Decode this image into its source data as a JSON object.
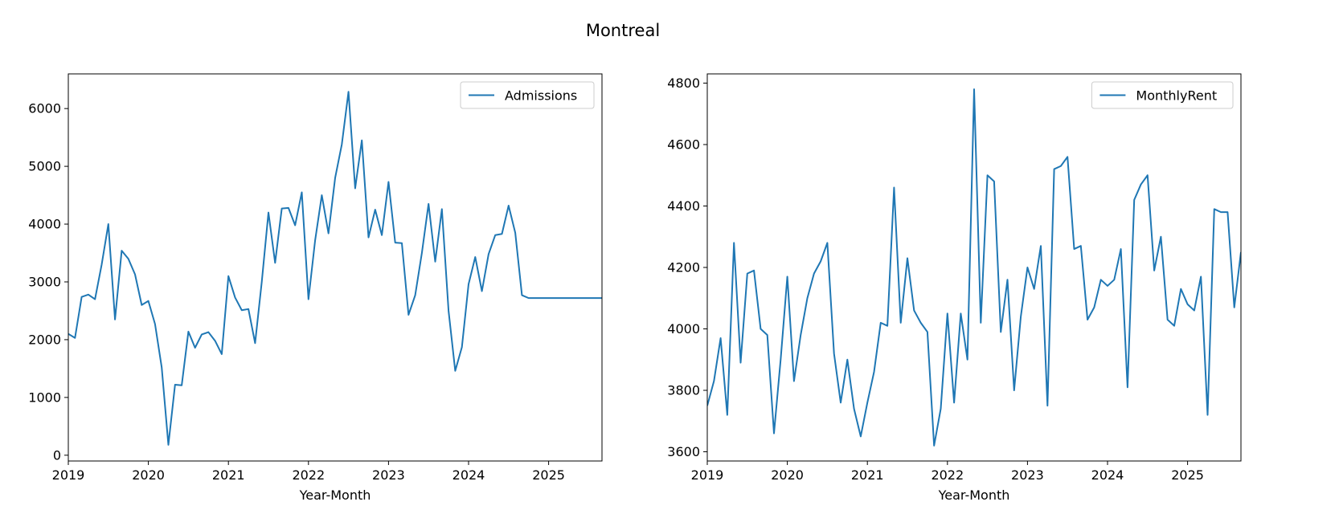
{
  "figure": {
    "title": "Montreal"
  },
  "chart_data": [
    {
      "type": "line",
      "title": "",
      "xlabel": "Year-Month",
      "ylabel": "",
      "x_ticks": [
        "2019",
        "2020",
        "2021",
        "2022",
        "2023",
        "2024",
        "2025"
      ],
      "y_ticks": [
        0,
        1000,
        2000,
        3000,
        4000,
        5000,
        6000
      ],
      "xlim": [
        "2019-01",
        "2025-09"
      ],
      "ylim": [
        -100,
        6600
      ],
      "grid": false,
      "legend": "top-right",
      "color": "#1f77b4",
      "series": [
        {
          "name": "Admissions",
          "x_start": "2019-01",
          "frequency": "monthly",
          "values": [
            2100,
            2030,
            2740,
            2780,
            2700,
            3300,
            4000,
            2350,
            3540,
            3400,
            3130,
            2600,
            2670,
            2270,
            1520,
            180,
            1220,
            1210,
            2140,
            1860,
            2090,
            2130,
            1980,
            1750,
            3100,
            2730,
            2510,
            2530,
            1940,
            3000,
            4200,
            3330,
            4270,
            4280,
            3980,
            4550,
            2700,
            3720,
            4500,
            3840,
            4800,
            5380,
            6290,
            4620,
            5450,
            3770,
            4250,
            3810,
            4730,
            3680,
            3670,
            2430,
            2770,
            3500,
            4350,
            3350,
            4260,
            2500,
            1460,
            1870,
            2960,
            3430,
            2840,
            3480,
            3810,
            3830,
            4320,
            3850,
            2770,
            2720,
            2720,
            2720,
            2720,
            2720,
            2720,
            2720,
            2720,
            2720,
            2720,
            2720,
            2720
          ]
        }
      ]
    },
    {
      "type": "line",
      "title": "",
      "xlabel": "Year-Month",
      "ylabel": "",
      "x_ticks": [
        "2019",
        "2020",
        "2021",
        "2022",
        "2023",
        "2024",
        "2025"
      ],
      "y_ticks": [
        3600,
        3800,
        4000,
        4200,
        4400,
        4600,
        4800
      ],
      "xlim": [
        "2019-01",
        "2025-09"
      ],
      "ylim": [
        3570,
        4830
      ],
      "grid": false,
      "legend": "top-right",
      "color": "#1f77b4",
      "series": [
        {
          "name": "MonthlyRent",
          "x_start": "2019-01",
          "frequency": "monthly",
          "values": [
            3750,
            3830,
            3970,
            3720,
            4280,
            3890,
            4180,
            4190,
            4000,
            3980,
            3660,
            3900,
            4170,
            3830,
            3980,
            4100,
            4180,
            4220,
            4280,
            3920,
            3760,
            3900,
            3740,
            3650,
            3760,
            3860,
            4020,
            4010,
            4460,
            4020,
            4230,
            4060,
            4020,
            3990,
            3620,
            3740,
            4050,
            3760,
            4050,
            3900,
            4780,
            4020,
            4500,
            4480,
            3990,
            4160,
            3800,
            4040,
            4200,
            4130,
            4270,
            3750,
            4520,
            4530,
            4560,
            4260,
            4270,
            4030,
            4070,
            4160,
            4140,
            4160,
            4260,
            3810,
            4420,
            4470,
            4500,
            4190,
            4300,
            4030,
            4010,
            4130,
            4080,
            4060,
            4170,
            3720,
            4390,
            4380,
            4380,
            4070,
            4250
          ]
        }
      ]
    }
  ]
}
